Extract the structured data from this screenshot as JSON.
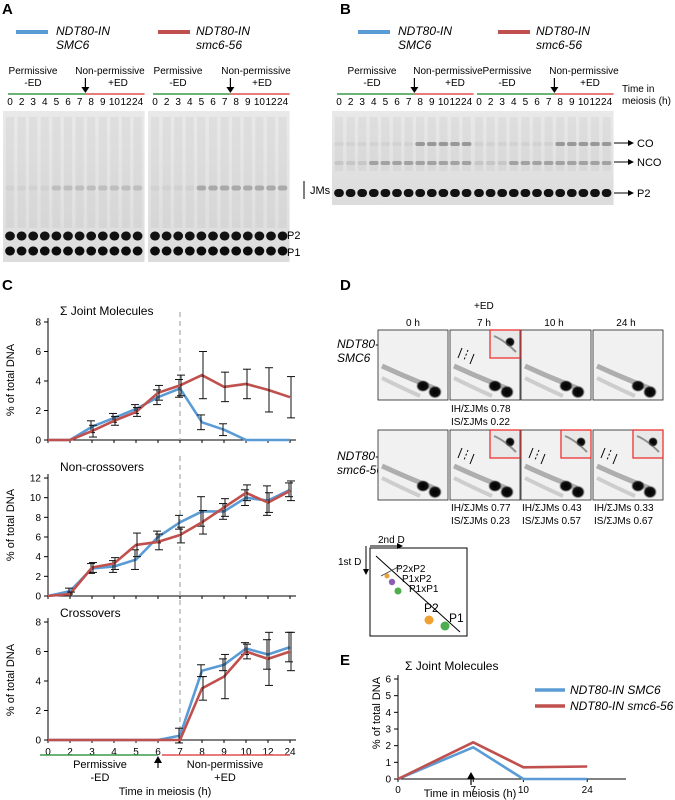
{
  "panels": {
    "A": {
      "letter": "A",
      "legend": [
        {
          "line1": "NDT80-IN",
          "line2": "SMC6",
          "color": "#5b9bd5"
        },
        {
          "line1": "NDT80-IN",
          "line2": "smc6-56",
          "color": "#c0504d"
        }
      ],
      "cond_perm": "Permissive",
      "cond_perm_sub": "-ED",
      "cond_nonperm": "Non-permissive",
      "cond_nonperm_sub": "+ED",
      "lanes": [
        "0",
        "2",
        "3",
        "4",
        "5",
        "6",
        "7",
        "8",
        "9",
        "10",
        "12",
        "24"
      ],
      "band_labels": [
        "JMs",
        "P2",
        "P1"
      ]
    },
    "B": {
      "letter": "B",
      "legend": [
        {
          "line1": "NDT80-IN",
          "line2": "SMC6",
          "color": "#5b9bd5"
        },
        {
          "line1": "NDT80-IN",
          "line2": "smc6-56",
          "color": "#c0504d"
        }
      ],
      "cond_perm": "Permissive",
      "cond_perm_sub": "-ED",
      "cond_nonperm": "Non-permissive",
      "cond_nonperm_sub": "+ED",
      "time_label1": "Time in",
      "time_label2": "meiosis (h)",
      "lanes": [
        "0",
        "2",
        "3",
        "4",
        "5",
        "6",
        "7",
        "8",
        "9",
        "10",
        "12",
        "24"
      ],
      "band_labels": [
        "CO",
        "NCO",
        "P2"
      ]
    },
    "C": {
      "letter": "C",
      "ylabel": "% of total DNA",
      "xlabel": "Time in meiosis (h)",
      "cond_perm": "Permissive",
      "cond_perm_sub": "-ED",
      "cond_nonperm": "Non-permissive",
      "cond_nonperm_sub": "+ED"
    },
    "D": {
      "letter": "D",
      "ed_label": "+ED",
      "times": [
        "0 h",
        "7 h",
        "10 h",
        "24 h"
      ],
      "row1_l1": "NDT80-IN",
      "row1_l2": "SMC6",
      "row2_l1": "NDT80-IN",
      "row2_l2": "smc6-56",
      "row1_ratios": [
        {
          "ih": "IH/ΣJMs 0.78",
          "is": "IS/ΣJMs 0.22"
        }
      ],
      "row2_ratios": [
        {
          "ih": "IH/ΣJMs 0.77",
          "is": "IS/ΣJMs 0.23"
        },
        {
          "ih": "IH/ΣJMs 0.43",
          "is": "IS/ΣJMs 0.57"
        },
        {
          "ih": "IH/ΣJMs 0.33",
          "is": "IS/ΣJMs 0.67"
        }
      ],
      "schematic": {
        "first_d": "1st D",
        "second_d": "2nd D",
        "labels": [
          "P2xP2",
          "P1xP2",
          "P1xP1",
          "P2",
          "P1"
        ]
      }
    },
    "E": {
      "letter": "E",
      "ylabel": "% of total DNA",
      "xlabel": "Time in meiosis (h)"
    }
  },
  "chart_data": [
    {
      "type": "line",
      "title": "Σ Joint Molecules",
      "ylabel": "% of total DNA",
      "xlabel": "Time in meiosis (h)",
      "categories": [
        "0",
        "2",
        "3",
        "4",
        "5",
        "6",
        "7",
        "8",
        "9",
        "10",
        "12",
        "24"
      ],
      "ylim": [
        0,
        8
      ],
      "yticks": [
        0,
        2,
        4,
        6,
        8
      ],
      "vline_at": "7",
      "series": [
        {
          "name": "NDT80-IN SMC6",
          "color": "#5b9bd5",
          "values": [
            0,
            0,
            0.9,
            1.5,
            2.1,
            2.9,
            3.5,
            1.2,
            0.7,
            0,
            0,
            0
          ],
          "errors": [
            0,
            0,
            0.4,
            0.3,
            0.3,
            0.5,
            0.6,
            0.5,
            0.4,
            0,
            0,
            0
          ]
        },
        {
          "name": "NDT80-IN smc6-56",
          "color": "#c0504d",
          "values": [
            0,
            0,
            0.6,
            1.3,
            1.9,
            3.2,
            3.7,
            4.4,
            3.6,
            3.8,
            3.4,
            2.9
          ],
          "errors": [
            0,
            0,
            0.4,
            0.3,
            0.3,
            0.5,
            0.7,
            1.6,
            1.0,
            1.0,
            1.5,
            1.4
          ]
        }
      ]
    },
    {
      "type": "line",
      "title": "Non-crossovers",
      "ylabel": "% of total DNA",
      "categories": [
        "0",
        "2",
        "3",
        "4",
        "5",
        "6",
        "7",
        "8",
        "9",
        "10",
        "12",
        "24"
      ],
      "ylim": [
        0,
        12
      ],
      "yticks": [
        0,
        2,
        4,
        6,
        8,
        10,
        12
      ],
      "vline_at": "7",
      "series": [
        {
          "name": "NDT80-IN SMC6",
          "color": "#5b9bd5",
          "values": [
            0,
            0.5,
            2.8,
            3.0,
            3.7,
            6.0,
            7.5,
            8.6,
            8.6,
            10.0,
            9.7,
            10.8
          ],
          "errors": [
            0,
            0.3,
            0.5,
            0.6,
            1.0,
            0.6,
            0.7,
            1.5,
            0.8,
            0.8,
            1.5,
            0.7
          ]
        },
        {
          "name": "NDT80-IN smc6-56",
          "color": "#c0504d",
          "values": [
            0,
            0.2,
            2.9,
            3.3,
            5.2,
            5.5,
            6.2,
            7.5,
            9.0,
            10.5,
            9.5,
            10.7
          ],
          "errors": [
            0,
            0.2,
            0.5,
            0.6,
            1.2,
            0.8,
            0.8,
            1.2,
            0.9,
            0.8,
            1.0,
            1.0
          ]
        }
      ]
    },
    {
      "type": "line",
      "title": "Crossovers",
      "ylabel": "% of total DNA",
      "xlabel": "Time in meiosis (h)",
      "categories": [
        "0",
        "2",
        "3",
        "4",
        "5",
        "6",
        "7",
        "8",
        "9",
        "10",
        "12",
        "24"
      ],
      "ylim": [
        0,
        8
      ],
      "yticks": [
        0,
        2,
        4,
        6,
        8
      ],
      "vline_at": "7",
      "series": [
        {
          "name": "NDT80-IN SMC6",
          "color": "#5b9bd5",
          "values": [
            0,
            0,
            0,
            0,
            0,
            0,
            0.3,
            4.7,
            5.1,
            6.2,
            5.8,
            6.3
          ],
          "errors": [
            0,
            0,
            0,
            0,
            0,
            0,
            0.5,
            0.4,
            0.4,
            0.4,
            1.0,
            1.0
          ]
        },
        {
          "name": "NDT80-IN smc6-56",
          "color": "#c0504d",
          "values": [
            0,
            0,
            0,
            0,
            0,
            0,
            0,
            3.5,
            4.3,
            6.0,
            5.5,
            6.0
          ],
          "errors": [
            0,
            0,
            0,
            0,
            0,
            0,
            0,
            0.8,
            1.5,
            0.5,
            1.8,
            1.3
          ]
        }
      ]
    },
    {
      "type": "line",
      "title": "Σ Joint Molecules",
      "ylabel": "% of total DNA",
      "xlabel": "Time in meiosis (h)",
      "categories": [
        "0",
        "7",
        "10",
        "24"
      ],
      "ylim": [
        0,
        6
      ],
      "yticks": [
        0,
        1,
        2,
        3,
        4,
        5,
        6
      ],
      "legend_position": "top-right",
      "series": [
        {
          "name": "NDT80-IN SMC6",
          "color": "#5b9bd5",
          "values": [
            0,
            1.9,
            0,
            0
          ]
        },
        {
          "name": "NDT80-IN smc6-56",
          "color": "#c0504d",
          "values": [
            0,
            2.2,
            0.7,
            0.75
          ]
        }
      ]
    }
  ]
}
